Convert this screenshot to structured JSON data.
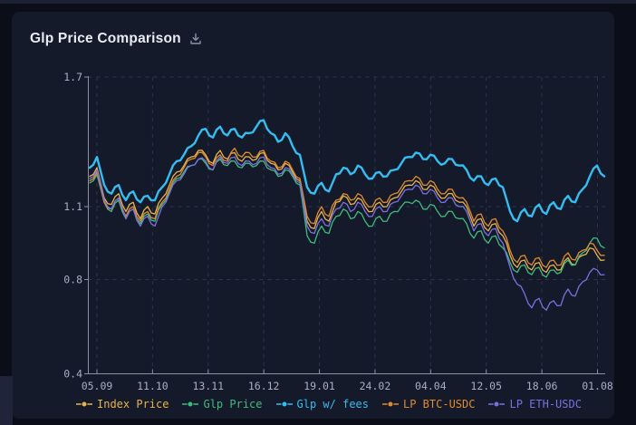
{
  "header": {
    "title": "Glp Price Comparison",
    "download_icon": "download-icon"
  },
  "colors": {
    "page_bg": "#0b0d18",
    "card_bg": "#151a2b",
    "grid": "#2e3352",
    "axis": "#8a8fa4",
    "tick_label": "#a9aec4",
    "title": "#e9ebf3"
  },
  "chart_data": {
    "type": "line",
    "title": "Glp Price Comparison",
    "xlabel": "",
    "ylabel": "",
    "ylim": [
      0.4,
      1.7
    ],
    "grid": "dashed",
    "legend_position": "bottom",
    "x_axis": {
      "tick_labels": [
        "05.09",
        "11.10",
        "13.11",
        "16.12",
        "19.01",
        "24.02",
        "04.04",
        "12.05",
        "18.06",
        "01.08"
      ]
    },
    "y_axis": {
      "tick_labels": [
        "1.7",
        "1.1",
        "0.8",
        "0.4"
      ],
      "tick_values": [
        1.7,
        1.1,
        0.8,
        0.4
      ]
    },
    "series": [
      {
        "name": "Index Price",
        "color": "#e8b44a",
        "emphasis": false,
        "values": [
          1.24,
          1.28,
          1.14,
          1.11,
          1.16,
          1.08,
          1.12,
          1.05,
          1.1,
          1.07,
          1.14,
          1.2,
          1.26,
          1.29,
          1.33,
          1.36,
          1.34,
          1.3,
          1.36,
          1.32,
          1.35,
          1.31,
          1.33,
          1.32,
          1.35,
          1.3,
          1.27,
          1.3,
          1.26,
          1.22,
          1.04,
          1.01,
          1.08,
          1.04,
          1.12,
          1.15,
          1.11,
          1.14,
          1.1,
          1.08,
          1.12,
          1.1,
          1.14,
          1.17,
          1.2,
          1.22,
          1.18,
          1.2,
          1.16,
          1.14,
          1.16,
          1.12,
          1.1,
          1.02,
          1.05,
          1.0,
          1.03,
          0.98,
          0.9,
          0.85,
          0.88,
          0.84,
          0.87,
          0.83,
          0.86,
          0.84,
          0.89,
          0.86,
          0.9,
          0.93,
          0.9,
          0.88
        ]
      },
      {
        "name": "Glp Price",
        "color": "#3dbd7c",
        "emphasis": false,
        "values": [
          1.21,
          1.25,
          1.12,
          1.08,
          1.13,
          1.05,
          1.09,
          1.03,
          1.07,
          1.04,
          1.11,
          1.17,
          1.23,
          1.26,
          1.29,
          1.32,
          1.3,
          1.27,
          1.32,
          1.29,
          1.31,
          1.28,
          1.3,
          1.29,
          1.31,
          1.27,
          1.24,
          1.27,
          1.24,
          1.2,
          0.98,
          0.95,
          1.02,
          0.99,
          1.06,
          1.09,
          1.05,
          1.08,
          1.04,
          1.02,
          1.06,
          1.04,
          1.08,
          1.1,
          1.12,
          1.13,
          1.09,
          1.11,
          1.08,
          1.06,
          1.08,
          1.05,
          1.03,
          0.97,
          1.0,
          0.95,
          0.98,
          0.93,
          0.87,
          0.83,
          0.86,
          0.82,
          0.85,
          0.81,
          0.84,
          0.83,
          0.88,
          0.86,
          0.91,
          0.95,
          0.97,
          0.93
        ]
      },
      {
        "name": "Glp w/ fees",
        "color": "#34bdf0",
        "emphasis": true,
        "values": [
          1.28,
          1.33,
          1.2,
          1.16,
          1.2,
          1.13,
          1.17,
          1.12,
          1.15,
          1.13,
          1.19,
          1.25,
          1.31,
          1.34,
          1.38,
          1.43,
          1.46,
          1.42,
          1.47,
          1.43,
          1.46,
          1.42,
          1.44,
          1.47,
          1.5,
          1.44,
          1.4,
          1.44,
          1.38,
          1.34,
          1.19,
          1.16,
          1.21,
          1.17,
          1.25,
          1.28,
          1.25,
          1.29,
          1.25,
          1.23,
          1.26,
          1.24,
          1.27,
          1.3,
          1.33,
          1.35,
          1.32,
          1.34,
          1.31,
          1.3,
          1.32,
          1.29,
          1.27,
          1.22,
          1.24,
          1.2,
          1.23,
          1.19,
          1.08,
          1.04,
          1.09,
          1.06,
          1.11,
          1.07,
          1.12,
          1.09,
          1.15,
          1.12,
          1.18,
          1.24,
          1.29,
          1.24
        ]
      },
      {
        "name": "LP BTC-USDC",
        "color": "#e18a2f",
        "emphasis": false,
        "values": [
          1.22,
          1.26,
          1.12,
          1.09,
          1.14,
          1.06,
          1.1,
          1.04,
          1.08,
          1.05,
          1.12,
          1.18,
          1.24,
          1.28,
          1.32,
          1.35,
          1.33,
          1.29,
          1.34,
          1.31,
          1.37,
          1.33,
          1.35,
          1.33,
          1.36,
          1.31,
          1.28,
          1.31,
          1.27,
          1.23,
          1.06,
          1.03,
          1.1,
          1.06,
          1.13,
          1.16,
          1.13,
          1.16,
          1.12,
          1.1,
          1.14,
          1.12,
          1.16,
          1.19,
          1.22,
          1.24,
          1.2,
          1.22,
          1.18,
          1.16,
          1.18,
          1.14,
          1.12,
          1.04,
          1.07,
          1.02,
          1.05,
          1.0,
          0.92,
          0.87,
          0.9,
          0.86,
          0.89,
          0.85,
          0.88,
          0.86,
          0.91,
          0.88,
          0.92,
          0.95,
          0.92,
          0.9
        ]
      },
      {
        "name": "LP ETH-USDC",
        "color": "#7a70e0",
        "emphasis": false,
        "values": [
          1.23,
          1.27,
          1.13,
          1.09,
          1.14,
          1.05,
          1.09,
          1.02,
          1.06,
          1.02,
          1.1,
          1.16,
          1.22,
          1.25,
          1.29,
          1.32,
          1.31,
          1.27,
          1.33,
          1.3,
          1.33,
          1.29,
          1.31,
          1.3,
          1.33,
          1.28,
          1.25,
          1.28,
          1.25,
          1.21,
          1.02,
          0.99,
          1.05,
          1.02,
          1.09,
          1.12,
          1.08,
          1.12,
          1.08,
          1.06,
          1.1,
          1.08,
          1.12,
          1.15,
          1.18,
          1.2,
          1.16,
          1.18,
          1.14,
          1.12,
          1.14,
          1.1,
          1.08,
          1.0,
          1.03,
          0.98,
          1.01,
          0.95,
          0.85,
          0.78,
          0.74,
          0.68,
          0.72,
          0.67,
          0.71,
          0.69,
          0.76,
          0.73,
          0.79,
          0.83,
          0.84,
          0.82
        ]
      }
    ]
  }
}
